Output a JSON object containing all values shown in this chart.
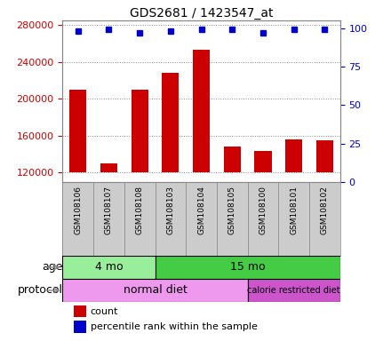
{
  "title": "GDS2681 / 1423547_at",
  "samples": [
    "GSM108106",
    "GSM108107",
    "GSM108108",
    "GSM108103",
    "GSM108104",
    "GSM108105",
    "GSM108100",
    "GSM108101",
    "GSM108102"
  ],
  "counts": [
    210000,
    130000,
    210000,
    228000,
    253000,
    148000,
    144000,
    156000,
    155000
  ],
  "percentile_ranks": [
    98,
    99,
    97,
    98,
    99,
    99,
    97,
    99,
    99
  ],
  "ylim_left": [
    110000,
    285000
  ],
  "yticks_left": [
    120000,
    160000,
    200000,
    240000,
    280000
  ],
  "ylim_right": [
    0,
    105
  ],
  "yticks_right": [
    0,
    25,
    50,
    75,
    100
  ],
  "bar_color": "#cc0000",
  "dot_color": "#0000cc",
  "bar_bottom": 120000,
  "age_groups": [
    {
      "label": "4 mo",
      "start": 0,
      "end": 3,
      "color": "#99ee99"
    },
    {
      "label": "15 mo",
      "start": 3,
      "end": 9,
      "color": "#44cc44"
    }
  ],
  "protocol_groups": [
    {
      "label": "normal diet",
      "start": 0,
      "end": 6,
      "color": "#ee99ee"
    },
    {
      "label": "calorie restricted diet",
      "start": 6,
      "end": 9,
      "color": "#cc55cc"
    }
  ],
  "label_age": "age",
  "label_protocol": "protocol",
  "legend_count_label": "count",
  "legend_pct_label": "percentile rank within the sample",
  "grid_color": "#888888",
  "tick_label_color_left": "#cc0000",
  "tick_label_color_right": "#0000cc",
  "sample_box_color": "#cccccc",
  "background_color": "#ffffff"
}
